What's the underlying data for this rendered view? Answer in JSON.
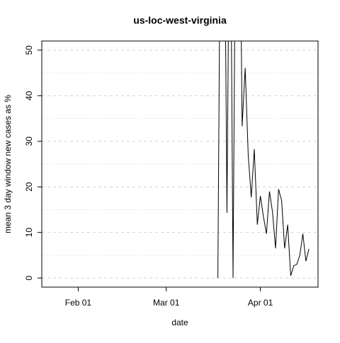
{
  "chart_data": {
    "type": "line",
    "title": "us-loc-west-virginia",
    "xlabel": "date",
    "ylabel": "mean  3  day window new cases as %",
    "x": [
      "Mar 18",
      "Mar 19",
      "Mar 20",
      "Mar 21",
      "Mar 22",
      "Mar 23",
      "Mar 24",
      "Mar 25",
      "Mar 26",
      "Mar 27",
      "Mar 28",
      "Mar 29",
      "Mar 30",
      "Mar 31",
      "Apr 01",
      "Apr 02",
      "Apr 03",
      "Apr 04",
      "Apr 05",
      "Apr 06",
      "Apr 07",
      "Apr 08",
      "Apr 09",
      "Apr 10",
      "Apr 11",
      "Apr 12",
      "Apr 13",
      "Apr 14",
      "Apr 15",
      "Apr 16",
      "Apr 17"
    ],
    "series": [
      {
        "name": "mean",
        "color": "#000000",
        "values": [
          0,
          100,
          100,
          14.3,
          100,
          0,
          100,
          100,
          33.3,
          46.1,
          27,
          17.7,
          28.3,
          11.7,
          18,
          13.5,
          9.7,
          19,
          14.5,
          6.5,
          19.5,
          17,
          6.5,
          11.7,
          0.5,
          2.7,
          3,
          5,
          9.7,
          3.7,
          6.4
        ]
      }
    ],
    "xlim": [
      "Jan 20",
      "Apr 20"
    ],
    "xticks": [
      "Feb 01",
      "Mar 01",
      "Apr 01"
    ],
    "ylim": [
      -2,
      52
    ],
    "yticks": [
      0,
      10,
      20,
      30,
      40,
      50
    ],
    "ygrid_minor": [
      5,
      15,
      25,
      35,
      45
    ],
    "grid": true
  }
}
